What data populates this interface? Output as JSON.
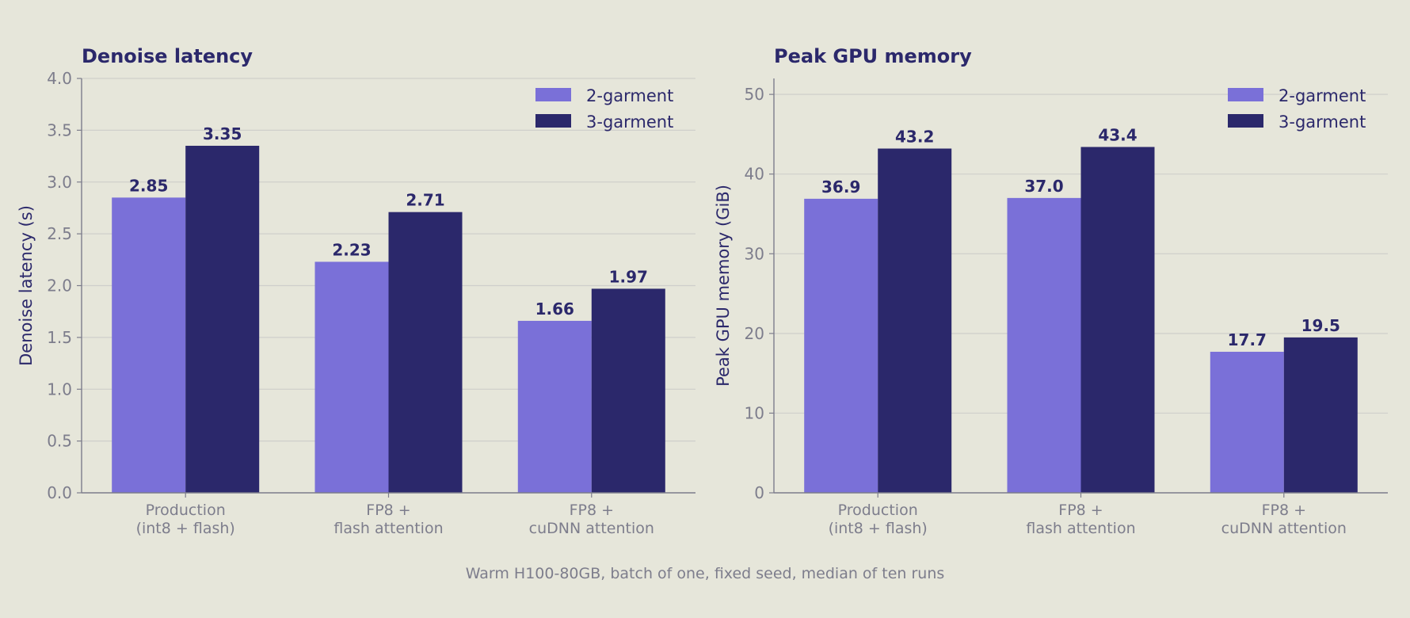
{
  "colors": {
    "background": "#e6e6da",
    "series_2garment": "#7a70d8",
    "series_3garment": "#2b286b",
    "title": "#2b286b",
    "axis_label": "#2b286b",
    "tick": "#7d7d8c",
    "grid": "#cfcfcb",
    "axis_line": "#7d7d8c"
  },
  "footnote": "Warm H100-80GB, batch of one, fixed seed, median of ten runs",
  "chart_data": [
    {
      "type": "bar",
      "title": "Denoise latency",
      "xlabel": "",
      "ylabel": "Denoise latency (s)",
      "categories": [
        [
          "Production",
          "(int8 + flash)"
        ],
        [
          "FP8 +",
          "flash attention"
        ],
        [
          "FP8 +",
          "cuDNN attention"
        ]
      ],
      "series": [
        {
          "name": "2-garment",
          "values": [
            2.85,
            2.23,
            1.66
          ],
          "labels": [
            "2.85",
            "2.23",
            "1.66"
          ]
        },
        {
          "name": "3-garment",
          "values": [
            3.35,
            2.71,
            1.97
          ],
          "labels": [
            "3.35",
            "2.71",
            "1.97"
          ]
        }
      ],
      "ylim": [
        0,
        4.0
      ],
      "yticks": [
        "0.0",
        "0.5",
        "1.0",
        "1.5",
        "2.0",
        "2.5",
        "3.0",
        "3.5",
        "4.0"
      ],
      "grid": true,
      "legend_position": "top-right"
    },
    {
      "type": "bar",
      "title": "Peak GPU memory",
      "xlabel": "",
      "ylabel": "Peak GPU memory (GiB)",
      "categories": [
        [
          "Production",
          "(int8 + flash)"
        ],
        [
          "FP8 +",
          "flash attention"
        ],
        [
          "FP8 +",
          "cuDNN attention"
        ]
      ],
      "series": [
        {
          "name": "2-garment",
          "values": [
            36.9,
            37.0,
            17.7
          ],
          "labels": [
            "36.9",
            "37.0",
            "17.7"
          ]
        },
        {
          "name": "3-garment",
          "values": [
            43.2,
            43.4,
            19.5
          ],
          "labels": [
            "43.2",
            "43.4",
            "19.5"
          ]
        }
      ],
      "ylim": [
        0,
        52
      ],
      "yticks": [
        "0",
        "10",
        "20",
        "30",
        "40",
        "50"
      ],
      "grid": true,
      "legend_position": "top-right"
    }
  ]
}
